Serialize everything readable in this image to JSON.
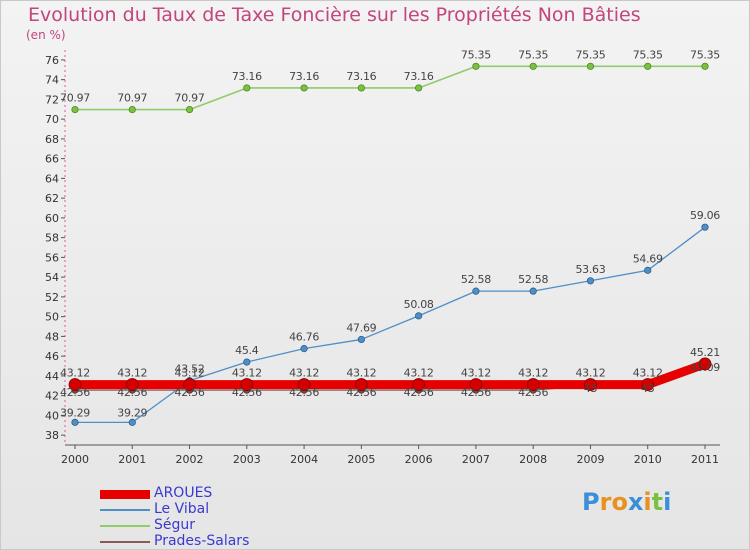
{
  "title": "Evolution du Taux de Taxe Foncière sur les Propriétés Non Bâties",
  "unit_label": "(en %)",
  "logo_text": "Proxiti",
  "chart_data": {
    "type": "line",
    "title": "Evolution du Taux de Taxe Foncière sur les Propriétés Non Bâties",
    "ylabel": "(en %)",
    "xlabel": "",
    "ylim": [
      37,
      76.8
    ],
    "yticks": [
      38,
      40,
      42,
      44,
      46,
      48,
      50,
      52,
      54,
      56,
      58,
      60,
      62,
      64,
      66,
      68,
      70,
      72,
      74,
      76
    ],
    "grid": false,
    "legend_position": "bottom-left",
    "x": [
      "2000",
      "2001",
      "2002",
      "2003",
      "2004",
      "2005",
      "2006",
      "2007",
      "2008",
      "2009",
      "2010",
      "2011"
    ],
    "series": [
      {
        "name": "Le Vibal",
        "color": "#4f8fc6",
        "values": [
          39.29,
          39.29,
          43.52,
          45.4,
          46.76,
          47.69,
          50.08,
          52.58,
          52.58,
          53.63,
          54.69,
          59.06
        ],
        "labels": [
          "39.29",
          "39.29",
          "43.52",
          "45.4",
          "46.76",
          "47.69",
          "50.08",
          "52.58",
          "52.58",
          "53.63",
          "54.69",
          "59.06"
        ]
      },
      {
        "name": "Ségur",
        "color": "#8fcc6a",
        "values": [
          70.97,
          70.97,
          70.97,
          73.16,
          73.16,
          73.16,
          73.16,
          75.35,
          75.35,
          75.35,
          75.35,
          75.35
        ],
        "labels": [
          "70.97",
          "70.97",
          "70.97",
          "73.16",
          "73.16",
          "73.16",
          "73.16",
          "75.35",
          "75.35",
          "75.35",
          "75.35",
          "75.35"
        ]
      },
      {
        "name": "Prades-Salars",
        "color": "#8a5a5a",
        "values": [
          42.56,
          42.56,
          42.56,
          42.56,
          42.56,
          42.56,
          42.56,
          42.56,
          42.56,
          43.0,
          43.0,
          45.09
        ],
        "labels": [
          "42.56",
          "42.56",
          "42.56",
          "42.56",
          "42.56",
          "42.56",
          "42.56",
          "42.56",
          "42.56",
          "43",
          "43",
          "45.09"
        ]
      },
      {
        "name": "AROUES",
        "color": "#e60000",
        "values": [
          43.12,
          43.12,
          43.12,
          43.12,
          43.12,
          43.12,
          43.12,
          43.12,
          43.12,
          43.12,
          43.12,
          45.21
        ],
        "labels": [
          "43.12",
          "43.12",
          "43.12",
          "43.12",
          "43.12",
          "43.12",
          "43.12",
          "43.12",
          "43.12",
          "43.12",
          "43.12",
          "45.21"
        ]
      }
    ],
    "legend": [
      "AROUES",
      "Le Vibal",
      "Ségur",
      "Prades-Salars"
    ]
  }
}
